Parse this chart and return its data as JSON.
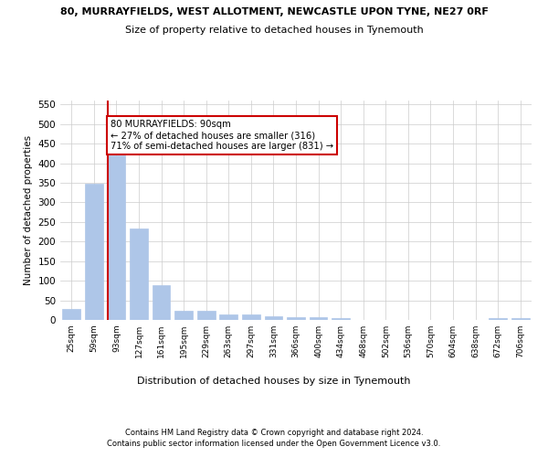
{
  "title_line1": "80, MURRAYFIELDS, WEST ALLOTMENT, NEWCASTLE UPON TYNE, NE27 0RF",
  "title_line2": "Size of property relative to detached houses in Tynemouth",
  "xlabel": "Distribution of detached houses by size in Tynemouth",
  "ylabel": "Number of detached properties",
  "categories": [
    "25sqm",
    "59sqm",
    "93sqm",
    "127sqm",
    "161sqm",
    "195sqm",
    "229sqm",
    "263sqm",
    "297sqm",
    "331sqm",
    "366sqm",
    "400sqm",
    "434sqm",
    "468sqm",
    "502sqm",
    "536sqm",
    "570sqm",
    "604sqm",
    "638sqm",
    "672sqm",
    "706sqm"
  ],
  "values": [
    28,
    348,
    420,
    233,
    88,
    23,
    23,
    14,
    14,
    10,
    7,
    7,
    4,
    0,
    0,
    0,
    0,
    0,
    0,
    5,
    5
  ],
  "bar_color": "#aec6e8",
  "bar_edge_color": "#aec6e8",
  "marker_index": 2,
  "marker_color": "#cc0000",
  "annotation_title": "80 MURRAYFIELDS: 90sqm",
  "annotation_line2": "← 27% of detached houses are smaller (316)",
  "annotation_line3": "71% of semi-detached houses are larger (831) →",
  "annotation_box_color": "#ffffff",
  "annotation_box_edge": "#cc0000",
  "ylim": [
    0,
    560
  ],
  "yticks": [
    0,
    50,
    100,
    150,
    200,
    250,
    300,
    350,
    400,
    450,
    500,
    550
  ],
  "footer_line1": "Contains HM Land Registry data © Crown copyright and database right 2024.",
  "footer_line2": "Contains public sector information licensed under the Open Government Licence v3.0.",
  "background_color": "#ffffff",
  "grid_color": "#cccccc"
}
